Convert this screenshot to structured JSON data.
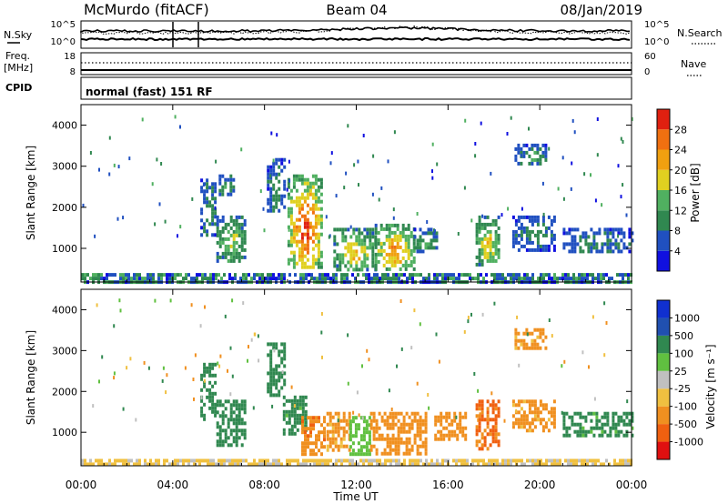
{
  "header": {
    "station": "McMurdo (fitACF)",
    "beam": "Beam 04",
    "date": "08/Jan/2019"
  },
  "noise_panel": {
    "left_label": "N.Sky",
    "left_ticks": [
      "10^5",
      "10^0"
    ],
    "right_ticks": [
      "10^5",
      "10^0"
    ],
    "right_label": "N.Search"
  },
  "freq_panel": {
    "left_label_line1": "Freq.",
    "left_label_line2": "[MHz]",
    "left_ticks": [
      "18",
      "8"
    ],
    "right_ticks": [
      "60",
      "0"
    ],
    "right_label": "Nave"
  },
  "cpid_panel": {
    "label": "CPID",
    "text": "normal (fast) 151 RF"
  },
  "colors": {
    "power_scale": [
      "#1010e0",
      "#2050c0",
      "#308850",
      "#50b060",
      "#e0d020",
      "#f0a010",
      "#f07010",
      "#e02010"
    ],
    "velocity_scale": [
      "#e01010",
      "#f06010",
      "#f09020",
      "#f0c040",
      "#c0c0c0",
      "#60c040",
      "#308850",
      "#2050b0",
      "#1030d0"
    ]
  },
  "chart_data": [
    {
      "type": "heatmap",
      "title": "",
      "xlabel": "",
      "ylabel": "Slant Range [km]",
      "xlim": [
        0,
        24
      ],
      "ylim": [
        180,
        4500
      ],
      "x_ticks": [
        0,
        4,
        8,
        12,
        16,
        20,
        24
      ],
      "y_ticks": [
        1000,
        2000,
        3000,
        4000
      ],
      "y_tick_labels": [
        "1000",
        "2000",
        "3000",
        "4000"
      ],
      "colorbar": {
        "label": "Power [dB]",
        "range": [
          0,
          32
        ],
        "ticks": [
          4,
          8,
          12,
          16,
          20,
          24,
          28
        ],
        "tick_labels": [
          "4",
          "8",
          "12",
          "16",
          "20",
          "24",
          "28"
        ]
      },
      "clusters": [
        {
          "x_start": 0,
          "x_end": 24,
          "y_start": 180,
          "y_end": 400,
          "peak": 6
        },
        {
          "x_start": 5.2,
          "x_end": 5.9,
          "y_start": 1300,
          "y_end": 2700,
          "peak": 9
        },
        {
          "x_start": 5.9,
          "x_end": 7.2,
          "y_start": 700,
          "y_end": 1800,
          "peak": 14
        },
        {
          "x_start": 6.0,
          "x_end": 6.6,
          "y_start": 2300,
          "y_end": 2800,
          "peak": 10
        },
        {
          "x_start": 8.1,
          "x_end": 8.9,
          "y_start": 1900,
          "y_end": 3200,
          "peak": 8
        },
        {
          "x_start": 9.0,
          "x_end": 10.5,
          "y_start": 500,
          "y_end": 2800,
          "peak": 26
        },
        {
          "x_start": 11.0,
          "x_end": 12.8,
          "y_start": 500,
          "y_end": 1500,
          "peak": 18
        },
        {
          "x_start": 12.8,
          "x_end": 14.5,
          "y_start": 500,
          "y_end": 1600,
          "peak": 22
        },
        {
          "x_start": 14.5,
          "x_end": 15.5,
          "y_start": 900,
          "y_end": 1500,
          "peak": 12
        },
        {
          "x_start": 17.2,
          "x_end": 18.2,
          "y_start": 600,
          "y_end": 1800,
          "peak": 18
        },
        {
          "x_start": 18.8,
          "x_end": 20.6,
          "y_start": 1000,
          "y_end": 1800,
          "peak": 8
        },
        {
          "x_start": 18.9,
          "x_end": 20.3,
          "y_start": 3100,
          "y_end": 3550,
          "peak": 10
        },
        {
          "x_start": 21.0,
          "x_end": 24.0,
          "y_start": 900,
          "y_end": 1500,
          "peak": 8
        }
      ]
    },
    {
      "type": "heatmap",
      "title": "",
      "xlabel": "Time UT",
      "ylabel": "Slant Range [km]",
      "xlim": [
        0,
        24
      ],
      "ylim": [
        180,
        4500
      ],
      "x_ticks": [
        0,
        4,
        8,
        12,
        16,
        20,
        24
      ],
      "x_tick_labels": [
        "00:00",
        "04:00",
        "08:00",
        "12:00",
        "16:00",
        "20:00",
        "00:00"
      ],
      "y_ticks": [
        1000,
        2000,
        3000,
        4000
      ],
      "y_tick_labels": [
        "1000",
        "2000",
        "3000",
        "4000"
      ],
      "colorbar": {
        "label": "Velocity [m s⁻¹]",
        "bins": [
          -1000,
          -500,
          -100,
          -25,
          25,
          100,
          500,
          1000
        ],
        "tick_labels": [
          "-1000",
          "-500",
          "-100",
          "-25",
          "25",
          "100",
          "500",
          "1000"
        ]
      },
      "clusters": [
        {
          "x_start": 0,
          "x_end": 24,
          "y_start": 180,
          "y_end": 350,
          "velocity": -60
        },
        {
          "x_start": 5.2,
          "x_end": 5.9,
          "y_start": 1300,
          "y_end": 2700,
          "velocity": 200
        },
        {
          "x_start": 5.9,
          "x_end": 7.2,
          "y_start": 700,
          "y_end": 1800,
          "velocity": 200
        },
        {
          "x_start": 8.1,
          "x_end": 8.9,
          "y_start": 1900,
          "y_end": 3200,
          "velocity": 300
        },
        {
          "x_start": 8.8,
          "x_end": 9.8,
          "y_start": 1000,
          "y_end": 1900,
          "velocity": 150
        },
        {
          "x_start": 9.6,
          "x_end": 10.6,
          "y_start": 500,
          "y_end": 1400,
          "velocity": -400
        },
        {
          "x_start": 10.7,
          "x_end": 11.7,
          "y_start": 600,
          "y_end": 1500,
          "velocity": -150
        },
        {
          "x_start": 11.7,
          "x_end": 12.6,
          "y_start": 500,
          "y_end": 1400,
          "velocity": 60
        },
        {
          "x_start": 12.6,
          "x_end": 15.0,
          "y_start": 500,
          "y_end": 1500,
          "velocity": -250
        },
        {
          "x_start": 15.4,
          "x_end": 16.8,
          "y_start": 800,
          "y_end": 1500,
          "velocity": -250
        },
        {
          "x_start": 17.2,
          "x_end": 18.2,
          "y_start": 600,
          "y_end": 1800,
          "velocity": -600
        },
        {
          "x_start": 18.8,
          "x_end": 20.6,
          "y_start": 1000,
          "y_end": 1800,
          "velocity": -150
        },
        {
          "x_start": 18.9,
          "x_end": 20.3,
          "y_start": 3100,
          "y_end": 3550,
          "velocity": -150
        },
        {
          "x_start": 21.0,
          "x_end": 24.0,
          "y_start": 900,
          "y_end": 1500,
          "velocity": 150
        }
      ]
    }
  ]
}
